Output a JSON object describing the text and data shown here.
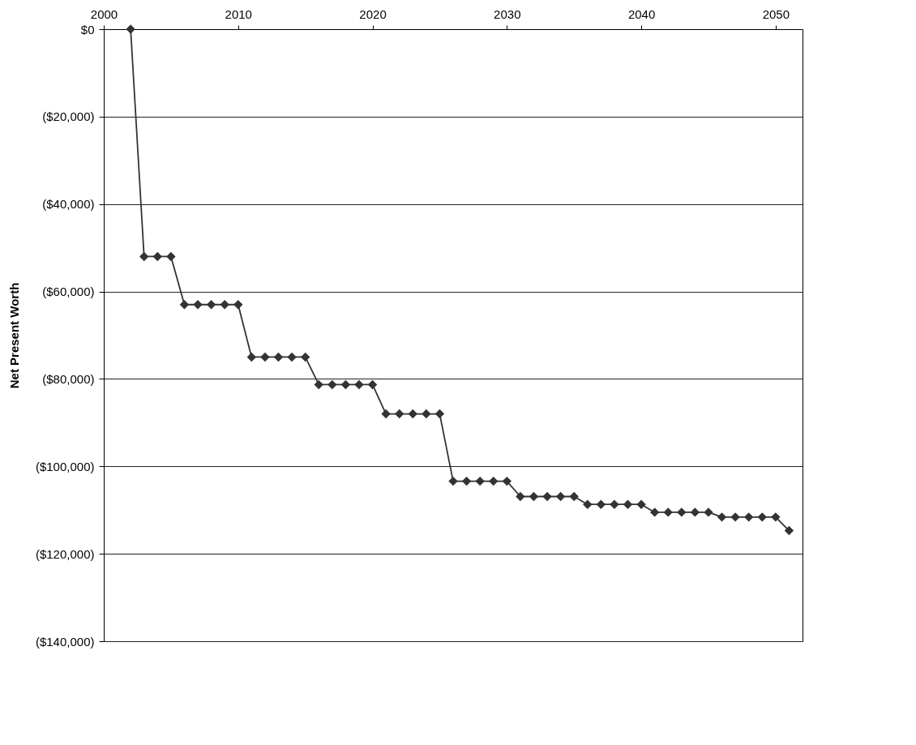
{
  "chart_data": {
    "type": "line",
    "ylabel": "Net Present Worth",
    "x": [
      2002,
      2003,
      2004,
      2005,
      2006,
      2007,
      2008,
      2009,
      2010,
      2011,
      2012,
      2013,
      2014,
      2015,
      2016,
      2017,
      2018,
      2019,
      2020,
      2021,
      2022,
      2023,
      2024,
      2025,
      2026,
      2027,
      2028,
      2029,
      2030,
      2031,
      2032,
      2033,
      2034,
      2035,
      2036,
      2037,
      2038,
      2039,
      2040,
      2041,
      2042,
      2043,
      2044,
      2045,
      2046,
      2047,
      2048,
      2049,
      2050,
      2051
    ],
    "series": [
      {
        "color": "#333333",
        "values": [
          0,
          -52000,
          -52000,
          -52000,
          -63000,
          -63000,
          -63000,
          -63000,
          -63000,
          -75000,
          -75000,
          -75000,
          -75000,
          -75000,
          -81300,
          -81300,
          -81300,
          -81300,
          -81300,
          -88000,
          -88000,
          -88000,
          -88000,
          -88000,
          -103400,
          -103400,
          -103400,
          -103400,
          -103400,
          -106900,
          -106900,
          -106900,
          -106900,
          -106900,
          -108700,
          -108700,
          -108700,
          -108700,
          -108700,
          -110500,
          -110500,
          -110500,
          -110500,
          -110500,
          -111600,
          -111600,
          -111600,
          -111600,
          -111600,
          -114700
        ]
      }
    ],
    "xlim": [
      2000,
      2052
    ],
    "xticks": [
      2000,
      2010,
      2020,
      2030,
      2040,
      2050
    ],
    "ylim": [
      -140000,
      0
    ],
    "yticks": [
      {
        "value": 0,
        "label": "$0"
      },
      {
        "value": -20000,
        "label": "($20,000)"
      },
      {
        "value": -40000,
        "label": "($40,000)"
      },
      {
        "value": -60000,
        "label": "($60,000)"
      },
      {
        "value": -80000,
        "label": "($80,000)"
      },
      {
        "value": -100000,
        "label": "($100,000)"
      },
      {
        "value": -120000,
        "label": "($120,000)"
      },
      {
        "value": -140000,
        "label": "($140,000)"
      }
    ],
    "grid": "y",
    "marker": "diamond",
    "line_style": "solid"
  }
}
